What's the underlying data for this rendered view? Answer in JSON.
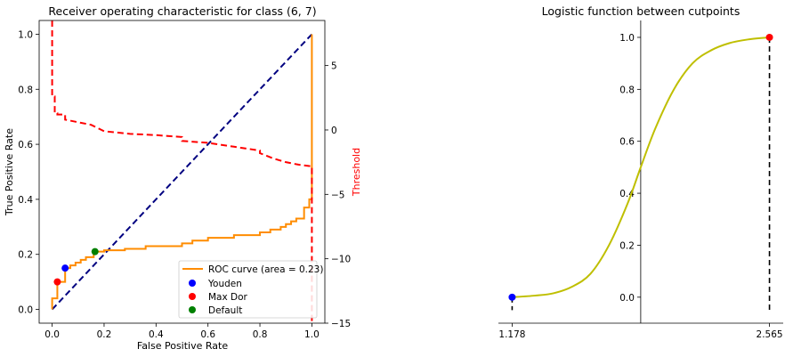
{
  "chart_data": [
    {
      "type": "line",
      "title": "Receiver operating characteristic for class (6, 7)",
      "xlabel": "False Positive Rate",
      "ylabel": "True Positive Rate",
      "y2label": "Threshold",
      "xlim": [
        -0.05,
        1.05
      ],
      "ylim": [
        -0.05,
        1.05
      ],
      "y2lim": [
        -15,
        8.5
      ],
      "xticks": [
        0.0,
        0.2,
        0.4,
        0.6,
        0.8,
        1.0
      ],
      "xtick_labels": [
        "0.0",
        "0.2",
        "0.4",
        "0.6",
        "0.8",
        "1.0"
      ],
      "yticks": [
        0.0,
        0.2,
        0.4,
        0.6,
        0.8,
        1.0
      ],
      "ytick_labels": [
        "0.0",
        "0.2",
        "0.4",
        "0.6",
        "0.8",
        "1.0"
      ],
      "y2ticks": [
        5,
        0,
        -5,
        -10,
        -15
      ],
      "y2tick_labels": [
        "5",
        "0",
        "−5",
        "−10",
        "−15"
      ],
      "legend_position": "lower-right",
      "colors": {
        "roc": "#ff8c00",
        "chance": "#000080",
        "threshold": "#ff0000",
        "youden": "#0000ff",
        "maxdor": "#ff0000",
        "default": "#008000",
        "y2label": "#ff0000"
      },
      "series": [
        {
          "name": "ROC curve (area = 0.23)",
          "style": "solid",
          "x": [
            0.0,
            0.0,
            0.02,
            0.02,
            0.05,
            0.05,
            0.07,
            0.07,
            0.09,
            0.09,
            0.11,
            0.11,
            0.13,
            0.13,
            0.16,
            0.16,
            0.2,
            0.2,
            0.28,
            0.28,
            0.36,
            0.36,
            0.5,
            0.5,
            0.54,
            0.54,
            0.6,
            0.6,
            0.7,
            0.7,
            0.8,
            0.8,
            0.84,
            0.84,
            0.88,
            0.88,
            0.9,
            0.9,
            0.92,
            0.92,
            0.94,
            0.94,
            0.97,
            0.97,
            0.99,
            0.99,
            1.0,
            1.0
          ],
          "y": [
            0.0,
            0.04,
            0.04,
            0.1,
            0.1,
            0.15,
            0.15,
            0.16,
            0.16,
            0.17,
            0.17,
            0.18,
            0.18,
            0.19,
            0.19,
            0.21,
            0.21,
            0.215,
            0.215,
            0.22,
            0.22,
            0.23,
            0.23,
            0.24,
            0.24,
            0.25,
            0.25,
            0.26,
            0.26,
            0.27,
            0.27,
            0.28,
            0.28,
            0.29,
            0.29,
            0.3,
            0.3,
            0.31,
            0.31,
            0.32,
            0.32,
            0.33,
            0.33,
            0.37,
            0.37,
            0.4,
            0.4,
            1.0
          ]
        },
        {
          "name": "",
          "style": "dashed",
          "x": [
            0.0,
            1.0
          ],
          "y": [
            0.0,
            1.0
          ]
        },
        {
          "name": "",
          "style": "dashed",
          "axis": "right",
          "x": [
            0.0,
            0.0,
            0.01,
            0.01,
            0.02,
            0.02,
            0.05,
            0.05,
            0.1,
            0.15,
            0.18,
            0.2,
            0.3,
            0.4,
            0.5,
            0.5,
            0.6,
            0.7,
            0.8,
            0.8,
            0.85,
            0.9,
            0.95,
            0.99,
            1.0,
            1.0
          ],
          "y": [
            8.5,
            2.6,
            2.6,
            1.3,
            1.3,
            1.2,
            1.2,
            0.8,
            0.6,
            0.4,
            0.1,
            -0.1,
            -0.3,
            -0.4,
            -0.55,
            -0.85,
            -1.0,
            -1.3,
            -1.6,
            -1.8,
            -2.2,
            -2.5,
            -2.7,
            -2.8,
            -2.8,
            -15.0
          ]
        }
      ],
      "points": [
        {
          "name": "Youden",
          "x": 0.05,
          "y": 0.15
        },
        {
          "name": "Max Dor",
          "x": 0.02,
          "y": 0.1
        },
        {
          "name": "Default",
          "x": 0.165,
          "y": 0.21
        }
      ]
    },
    {
      "type": "line",
      "title": "Logistic function between cutpoints",
      "xlabel": "",
      "ylabel": "",
      "xlim": [
        1.104,
        2.639
      ],
      "ylim": [
        -0.1,
        1.065
      ],
      "xticks": [
        1.178,
        2.565
      ],
      "xtick_labels": [
        "1.178",
        "2.565"
      ],
      "yticks": [
        0.0,
        0.2,
        0.4,
        0.6,
        0.8,
        1.0
      ],
      "ytick_labels": [
        "0.0",
        "0.2",
        "0.4",
        "0.6",
        "0.8",
        "1.0"
      ],
      "yaxis_at_x": 1.871,
      "colors": {
        "curve": "#bfbf00",
        "start_point": "#0000ff",
        "end_point": "#ff0000",
        "stems": "#000000"
      },
      "series": [
        {
          "name": "",
          "style": "solid",
          "x": [
            1.178,
            1.3,
            1.4,
            1.5,
            1.6,
            1.7,
            1.8,
            1.871,
            1.95,
            2.05,
            2.15,
            2.25,
            2.35,
            2.45,
            2.565
          ],
          "y": [
            0.0,
            0.006,
            0.015,
            0.04,
            0.09,
            0.2,
            0.36,
            0.5,
            0.65,
            0.8,
            0.9,
            0.95,
            0.978,
            0.992,
            1.0
          ]
        }
      ],
      "points": [
        {
          "name": "",
          "x": 1.178,
          "y": 0.0,
          "stem_to": -0.05
        },
        {
          "name": "",
          "x": 2.565,
          "y": 1.0,
          "stem_to": -0.05
        }
      ]
    }
  ]
}
